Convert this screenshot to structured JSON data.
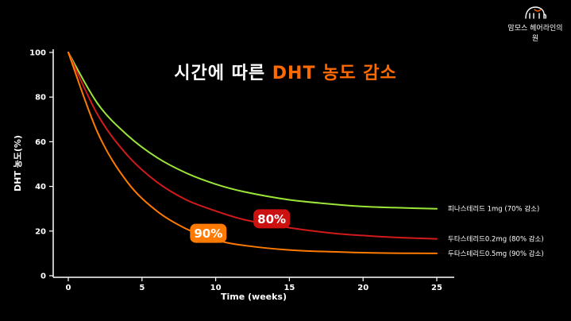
{
  "brand": {
    "name": "맘모스 헤어라인의원",
    "icon": "mammoth-logo-icon"
  },
  "colors": {
    "background": "#000000",
    "axis": "#ffffff",
    "title_accent": "#ff6a00"
  },
  "chart_data": {
    "type": "line",
    "title_prefix": "시간에 따른 ",
    "title_accent": "DHT 농도 감소",
    "xlabel": "Time (weeks)",
    "ylabel": "DHT 농도(%)",
    "xlim": [
      0,
      25
    ],
    "ylim": [
      0,
      100
    ],
    "xticks": [
      0,
      5,
      10,
      15,
      20,
      25
    ],
    "yticks": [
      0,
      20,
      40,
      60,
      80,
      100
    ],
    "grid": false,
    "series": [
      {
        "name": "피나스테리드 1mg (70% 감소)",
        "color": "#9be538",
        "x": [
          0,
          2,
          4,
          6,
          8,
          10,
          12,
          15,
          18,
          20,
          22,
          25
        ],
        "y": [
          100,
          77,
          63,
          53,
          46,
          41,
          37.5,
          34,
          32,
          31,
          30.5,
          30
        ]
      },
      {
        "name": "두타스테리드0.2mg (80% 감소)",
        "color": "#d11a1a",
        "x": [
          0,
          2,
          4,
          6,
          8,
          10,
          12,
          15,
          18,
          20,
          22,
          25
        ],
        "y": [
          100,
          72,
          54,
          42,
          34,
          29,
          25,
          21.5,
          19,
          18,
          17.2,
          16.5
        ]
      },
      {
        "name": "두타스테리드0.5mg (90% 감소)",
        "color": "#ff7a00",
        "x": [
          0,
          2,
          4,
          6,
          8,
          10,
          12,
          15,
          18,
          20,
          22,
          25
        ],
        "y": [
          100,
          64,
          42,
          29,
          21,
          16,
          13.5,
          11.5,
          10.7,
          10.3,
          10.1,
          10
        ]
      }
    ],
    "annotations": [
      {
        "text": "80%",
        "x": 13.8,
        "y": 25.5,
        "color": "#cc1111"
      },
      {
        "text": "90%",
        "x": 9.5,
        "y": 19,
        "color": "#ff7a00"
      }
    ]
  }
}
